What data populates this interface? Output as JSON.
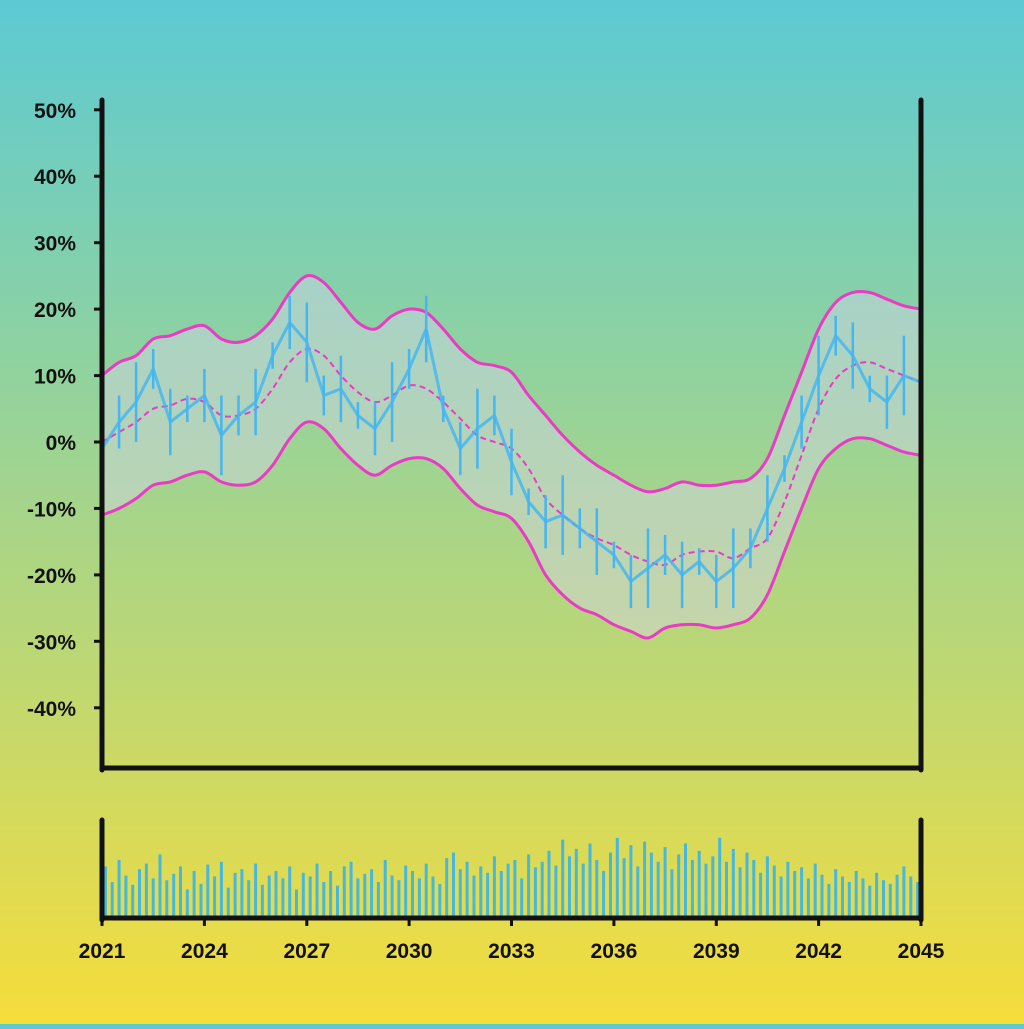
{
  "chart_data": {
    "type": "line",
    "title": "",
    "xlabel": "",
    "ylabel": "",
    "x_ticks": [
      "2021",
      "2024",
      "2027",
      "2030",
      "2033",
      "2036",
      "2039",
      "2042",
      "2045"
    ],
    "xlim": [
      2021,
      2045
    ],
    "y_ticks": [
      "50%",
      "40%",
      "30%",
      "20%",
      "10%",
      "0%",
      "-10%",
      "-20%",
      "-30%",
      "-40%"
    ],
    "ylim": [
      -48,
      50
    ],
    "grid": false,
    "legend": "none",
    "series": [
      {
        "role": "price",
        "x": [
          2021.0,
          2021.5,
          2022.0,
          2022.5,
          2023.0,
          2023.5,
          2024.0,
          2024.5,
          2025.0,
          2025.5,
          2026.0,
          2026.5,
          2027.0,
          2027.5,
          2028.0,
          2028.5,
          2029.0,
          2029.5,
          2030.0,
          2030.5,
          2031.0,
          2031.5,
          2032.0,
          2032.5,
          2033.0,
          2033.5,
          2034.0,
          2034.5,
          2035.0,
          2035.5,
          2036.0,
          2036.5,
          2037.0,
          2037.5,
          2038.0,
          2038.5,
          2039.0,
          2039.5,
          2040.0,
          2040.5,
          2041.0,
          2041.5,
          2042.0,
          2042.5,
          2043.0,
          2043.5,
          2044.0,
          2044.5,
          2045.0
        ],
        "values": [
          -1,
          3,
          6,
          11,
          3,
          5,
          7,
          1,
          4,
          6,
          13,
          18,
          15,
          7,
          8,
          4,
          2,
          6,
          11,
          17,
          5,
          -1,
          2,
          4,
          -3,
          -9,
          -12,
          -11,
          -13,
          -15,
          -17,
          -21,
          -19,
          -17,
          -20,
          -18,
          -21,
          -19,
          -16,
          -10,
          -4,
          3,
          10,
          16,
          13,
          8,
          6,
          10,
          9
        ]
      },
      {
        "role": "upper-band",
        "x": [
          2021.0,
          2021.5,
          2022.0,
          2022.5,
          2023.0,
          2023.5,
          2024.0,
          2024.5,
          2025.0,
          2025.5,
          2026.0,
          2026.5,
          2027.0,
          2027.5,
          2028.0,
          2028.5,
          2029.0,
          2029.5,
          2030.0,
          2030.5,
          2031.0,
          2031.5,
          2032.0,
          2032.5,
          2033.0,
          2033.5,
          2034.0,
          2034.5,
          2035.0,
          2035.5,
          2036.0,
          2036.5,
          2037.0,
          2037.5,
          2038.0,
          2038.5,
          2039.0,
          2039.5,
          2040.0,
          2040.5,
          2041.0,
          2041.5,
          2042.0,
          2042.5,
          2043.0,
          2043.5,
          2044.0,
          2044.5,
          2045.0
        ],
        "values": [
          10,
          12,
          13,
          15.5,
          16,
          17,
          17.5,
          15.5,
          15,
          16,
          18.5,
          22.5,
          25,
          24,
          21,
          18,
          17,
          19,
          20,
          19.5,
          17,
          14,
          12,
          11.5,
          10.5,
          7,
          4,
          1,
          -1.5,
          -3.5,
          -5,
          -6.5,
          -7.5,
          -7,
          -6,
          -6.5,
          -6.5,
          -6,
          -5.5,
          -2.5,
          4,
          10.5,
          17,
          21,
          22.5,
          22.5,
          21.5,
          20.5,
          20
        ]
      },
      {
        "role": "middle-band",
        "x": [
          2021.0,
          2021.5,
          2022.0,
          2022.5,
          2023.0,
          2023.5,
          2024.0,
          2024.5,
          2025.0,
          2025.5,
          2026.0,
          2026.5,
          2027.0,
          2027.5,
          2028.0,
          2028.5,
          2029.0,
          2029.5,
          2030.0,
          2030.5,
          2031.0,
          2031.5,
          2032.0,
          2032.5,
          2033.0,
          2033.5,
          2034.0,
          2034.5,
          2035.0,
          2035.5,
          2036.0,
          2036.5,
          2037.0,
          2037.5,
          2038.0,
          2038.5,
          2039.0,
          2039.5,
          2040.0,
          2040.5,
          2041.0,
          2041.5,
          2042.0,
          2042.5,
          2043.0,
          2043.5,
          2044.0,
          2044.5,
          2045.0
        ],
        "values": [
          0,
          1.5,
          3,
          5,
          5.5,
          6.5,
          6,
          4,
          4,
          5,
          8,
          12,
          14,
          13,
          10,
          7.5,
          6,
          7,
          8.5,
          8,
          6,
          3.5,
          1,
          0,
          -1,
          -4,
          -8.5,
          -11,
          -13,
          -14.5,
          -15.5,
          -17,
          -18,
          -18.5,
          -17,
          -16.5,
          -16.5,
          -17.5,
          -16,
          -14.5,
          -9,
          -2,
          5,
          9.5,
          11.5,
          12,
          11,
          10,
          9
        ]
      },
      {
        "role": "lower-band",
        "x": [
          2021.0,
          2021.5,
          2022.0,
          2022.5,
          2023.0,
          2023.5,
          2024.0,
          2024.5,
          2025.0,
          2025.5,
          2026.0,
          2026.5,
          2027.0,
          2027.5,
          2028.0,
          2028.5,
          2029.0,
          2029.5,
          2030.0,
          2030.5,
          2031.0,
          2031.5,
          2032.0,
          2032.5,
          2033.0,
          2033.5,
          2034.0,
          2034.5,
          2035.0,
          2035.5,
          2036.0,
          2036.5,
          2037.0,
          2037.5,
          2038.0,
          2038.5,
          2039.0,
          2039.5,
          2040.0,
          2040.5,
          2041.0,
          2041.5,
          2042.0,
          2042.5,
          2043.0,
          2043.5,
          2044.0,
          2044.5,
          2045.0
        ],
        "values": [
          -11,
          -10,
          -8.5,
          -6.5,
          -6,
          -5,
          -4.5,
          -6,
          -6.5,
          -6,
          -3.5,
          0.5,
          3,
          2,
          -1,
          -3.5,
          -5,
          -3.5,
          -2.5,
          -2.5,
          -4,
          -7,
          -9.5,
          -10.5,
          -11.5,
          -15,
          -20,
          -23,
          -25,
          -26,
          -27.5,
          -28.5,
          -29.5,
          -28,
          -27.5,
          -27.5,
          -28,
          -27.5,
          -26.5,
          -23,
          -16.5,
          -10,
          -4,
          -1,
          0.5,
          0.5,
          -0.5,
          -1.5,
          -2
        ]
      }
    ],
    "volume": {
      "x": [
        2021.1,
        2021.3,
        2021.5,
        2021.7,
        2021.9,
        2022.1,
        2022.3,
        2022.5,
        2022.7,
        2022.9,
        2023.1,
        2023.3,
        2023.5,
        2023.7,
        2023.9,
        2024.1,
        2024.3,
        2024.5,
        2024.7,
        2024.9,
        2025.1,
        2025.3,
        2025.5,
        2025.7,
        2025.9,
        2026.1,
        2026.3,
        2026.5,
        2026.7,
        2026.9,
        2027.1,
        2027.3,
        2027.5,
        2027.7,
        2027.9,
        2028.1,
        2028.3,
        2028.5,
        2028.7,
        2028.9,
        2029.1,
        2029.3,
        2029.5,
        2029.7,
        2029.9,
        2030.1,
        2030.3,
        2030.5,
        2030.7,
        2030.9,
        2031.1,
        2031.3,
        2031.5,
        2031.7,
        2031.9,
        2032.1,
        2032.3,
        2032.5,
        2032.7,
        2032.9,
        2033.1,
        2033.3,
        2033.5,
        2033.7,
        2033.9,
        2034.1,
        2034.3,
        2034.5,
        2034.7,
        2034.9,
        2035.1,
        2035.3,
        2035.5,
        2035.7,
        2035.9,
        2036.1,
        2036.3,
        2036.5,
        2036.7,
        2036.9,
        2037.1,
        2037.3,
        2037.5,
        2037.7,
        2037.9,
        2038.1,
        2038.3,
        2038.5,
        2038.7,
        2038.9,
        2039.1,
        2039.3,
        2039.5,
        2039.7,
        2039.9,
        2040.1,
        2040.3,
        2040.5,
        2040.7,
        2040.9,
        2041.1,
        2041.3,
        2041.5,
        2041.7,
        2041.9,
        2042.1,
        2042.3,
        2042.5,
        2042.7,
        2042.9,
        2043.1,
        2043.3,
        2043.5,
        2043.7,
        2043.9,
        2044.1,
        2044.3,
        2044.5,
        2044.7,
        2044.9
      ],
      "values": [
        0.55,
        0.38,
        0.62,
        0.45,
        0.35,
        0.52,
        0.58,
        0.42,
        0.68,
        0.4,
        0.47,
        0.55,
        0.3,
        0.5,
        0.36,
        0.57,
        0.44,
        0.6,
        0.32,
        0.48,
        0.52,
        0.4,
        0.58,
        0.35,
        0.45,
        0.5,
        0.42,
        0.55,
        0.3,
        0.48,
        0.44,
        0.58,
        0.38,
        0.5,
        0.34,
        0.55,
        0.6,
        0.42,
        0.47,
        0.52,
        0.38,
        0.62,
        0.45,
        0.4,
        0.56,
        0.5,
        0.42,
        0.58,
        0.44,
        0.36,
        0.64,
        0.7,
        0.52,
        0.6,
        0.45,
        0.55,
        0.48,
        0.66,
        0.5,
        0.58,
        0.62,
        0.42,
        0.68,
        0.54,
        0.6,
        0.72,
        0.56,
        0.84,
        0.66,
        0.74,
        0.58,
        0.8,
        0.62,
        0.5,
        0.7,
        0.86,
        0.64,
        0.78,
        0.55,
        0.82,
        0.7,
        0.6,
        0.76,
        0.52,
        0.68,
        0.8,
        0.62,
        0.72,
        0.58,
        0.66,
        0.86,
        0.6,
        0.74,
        0.54,
        0.7,
        0.62,
        0.48,
        0.66,
        0.56,
        0.44,
        0.6,
        0.5,
        0.54,
        0.42,
        0.58,
        0.46,
        0.36,
        0.52,
        0.44,
        0.38,
        0.5,
        0.42,
        0.34,
        0.48,
        0.4,
        0.36,
        0.46,
        0.55,
        0.44,
        0.38
      ]
    },
    "colors": {
      "price": "#45b6f0",
      "band_line": "#ea3bc5",
      "band_fill": "#d8d4ee",
      "volume": "#45b8dc",
      "axis": "#111111"
    }
  }
}
